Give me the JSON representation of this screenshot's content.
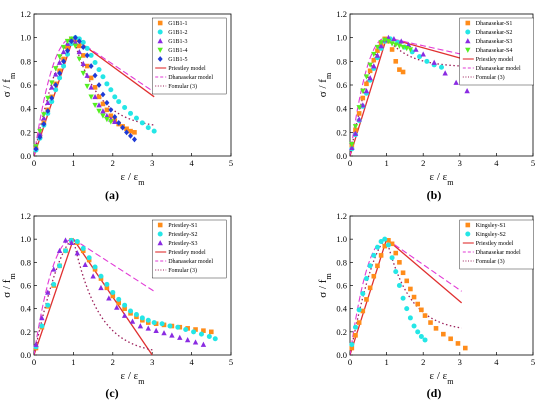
{
  "colors": {
    "S1": "#ff8c1a",
    "S2": "#24e6e6",
    "S3": "#8a2be2",
    "S4": "#55ee22",
    "S5": "#1f3bd6",
    "priestley": "#e03030",
    "dhanasekar": "#e23ad6",
    "formula": "#9b1f5a"
  },
  "chart_data": [
    {
      "panel": "(a)",
      "type": "scatter",
      "xlabel": "ε / ε_m",
      "ylabel": "σ / f_m",
      "xlim": [
        0,
        5
      ],
      "ylim": [
        0,
        1.2
      ],
      "xticks": [
        "0",
        "1",
        "2",
        "3",
        "4",
        "5"
      ],
      "yticks": [
        "0.0",
        "0.2",
        "0.4",
        "0.6",
        "0.8",
        "1.0",
        "1.2"
      ],
      "series": [
        {
          "name": "G1B1-1",
          "marker": "square",
          "color_key": "S1",
          "x": [
            0.05,
            0.15,
            0.25,
            0.35,
            0.45,
            0.55,
            0.65,
            0.75,
            0.85,
            0.95,
            1.05,
            1.15,
            1.25,
            1.35,
            1.45,
            1.55,
            1.65,
            1.75,
            1.85,
            1.95,
            2.05,
            2.15,
            2.25,
            2.35,
            2.45,
            2.55
          ],
          "y": [
            0.06,
            0.17,
            0.28,
            0.39,
            0.5,
            0.61,
            0.72,
            0.82,
            0.92,
            0.99,
            0.98,
            0.93,
            0.85,
            0.76,
            0.66,
            0.58,
            0.5,
            0.44,
            0.39,
            0.34,
            0.3,
            0.27,
            0.25,
            0.23,
            0.21,
            0.2
          ]
        },
        {
          "name": "G1B1-2",
          "marker": "circle",
          "color_key": "S2",
          "x": [
            0.05,
            0.15,
            0.25,
            0.35,
            0.45,
            0.55,
            0.65,
            0.75,
            0.85,
            0.95,
            1.05,
            1.15,
            1.25,
            1.35,
            1.45,
            1.55,
            1.65,
            1.75,
            1.85,
            1.95,
            2.05,
            2.15,
            2.3,
            2.45,
            2.6,
            2.75,
            2.9,
            3.05
          ],
          "y": [
            0.05,
            0.15,
            0.26,
            0.36,
            0.46,
            0.56,
            0.66,
            0.76,
            0.86,
            0.95,
            1.0,
            0.99,
            0.96,
            0.91,
            0.85,
            0.79,
            0.73,
            0.67,
            0.61,
            0.56,
            0.5,
            0.46,
            0.41,
            0.36,
            0.32,
            0.28,
            0.24,
            0.21
          ]
        },
        {
          "name": "G1B1-3",
          "marker": "triangle-up",
          "color_key": "S3",
          "x": [
            0.05,
            0.15,
            0.25,
            0.35,
            0.45,
            0.55,
            0.65,
            0.75,
            0.85,
            0.95,
            1.05,
            1.15,
            1.25,
            1.35,
            1.45,
            1.55,
            1.65,
            1.75,
            1.85,
            1.95,
            2.05
          ],
          "y": [
            0.07,
            0.19,
            0.32,
            0.45,
            0.58,
            0.69,
            0.79,
            0.88,
            0.95,
            0.99,
            0.96,
            0.88,
            0.78,
            0.68,
            0.58,
            0.5,
            0.43,
            0.38,
            0.34,
            0.31,
            0.29
          ]
        },
        {
          "name": "G1B1-4",
          "marker": "triangle-down",
          "color_key": "S4",
          "x": [
            0.05,
            0.15,
            0.25,
            0.35,
            0.45,
            0.55,
            0.65,
            0.75,
            0.85,
            0.95,
            1.05,
            1.15,
            1.25,
            1.35,
            1.45,
            1.55,
            1.65,
            1.75,
            1.85,
            1.95
          ],
          "y": [
            0.08,
            0.21,
            0.35,
            0.49,
            0.62,
            0.74,
            0.84,
            0.92,
            0.97,
            0.99,
            0.93,
            0.82,
            0.7,
            0.59,
            0.5,
            0.43,
            0.38,
            0.34,
            0.31,
            0.29
          ]
        },
        {
          "name": "G1B1-5",
          "marker": "diamond",
          "color_key": "S5",
          "x": [
            0.05,
            0.15,
            0.25,
            0.35,
            0.45,
            0.55,
            0.65,
            0.75,
            0.85,
            0.95,
            1.05,
            1.15,
            1.25,
            1.35,
            1.45,
            1.55,
            1.65,
            1.75,
            1.85,
            1.95,
            2.05,
            2.15,
            2.25,
            2.35,
            2.45,
            2.55
          ],
          "y": [
            0.06,
            0.16,
            0.27,
            0.38,
            0.49,
            0.6,
            0.7,
            0.8,
            0.89,
            0.97,
            1.0,
            0.97,
            0.92,
            0.85,
            0.76,
            0.68,
            0.6,
            0.52,
            0.45,
            0.39,
            0.33,
            0.28,
            0.24,
            0.2,
            0.17,
            0.14
          ]
        }
      ],
      "curves": [
        "priestley",
        "dhanasekar",
        "formula"
      ]
    },
    {
      "panel": "(b)",
      "type": "scatter",
      "xlabel": "ε / ε_m",
      "ylabel": "σ / f_m",
      "xlim": [
        0,
        5
      ],
      "ylim": [
        0,
        1.2
      ],
      "xticks": [
        "0",
        "1",
        "2",
        "3",
        "4",
        "5"
      ],
      "yticks": [
        "0.0",
        "0.2",
        "0.4",
        "0.6",
        "0.8",
        "1.0",
        "1.2"
      ],
      "series": [
        {
          "name": "Dhanasekar-S1",
          "marker": "square",
          "color_key": "S1",
          "x": [
            0.05,
            0.15,
            0.25,
            0.35,
            0.45,
            0.55,
            0.65,
            0.75,
            0.85,
            0.95,
            1.05,
            1.15,
            1.25,
            1.35,
            1.45
          ],
          "y": [
            0.08,
            0.22,
            0.36,
            0.49,
            0.61,
            0.72,
            0.81,
            0.89,
            0.95,
            0.99,
            0.97,
            0.9,
            0.8,
            0.73,
            0.71
          ]
        },
        {
          "name": "Dhanasekar-S2",
          "marker": "circle",
          "color_key": "S2",
          "x": [
            0.05,
            0.15,
            0.25,
            0.35,
            0.45,
            0.55,
            0.65,
            0.75,
            0.85,
            0.95,
            1.1,
            1.3,
            1.5,
            1.7,
            1.9,
            2.1,
            2.3,
            2.5
          ],
          "y": [
            0.06,
            0.18,
            0.3,
            0.42,
            0.53,
            0.64,
            0.74,
            0.83,
            0.91,
            0.97,
            0.99,
            0.96,
            0.92,
            0.88,
            0.84,
            0.8,
            0.77,
            0.75
          ]
        },
        {
          "name": "Dhanasekar-S3",
          "marker": "triangle-up",
          "color_key": "S3",
          "x": [
            0.05,
            0.15,
            0.25,
            0.35,
            0.45,
            0.55,
            0.65,
            0.75,
            0.85,
            0.95,
            1.05,
            1.2,
            1.4,
            1.6,
            1.8,
            2.0,
            2.3,
            2.6,
            2.9,
            3.2
          ],
          "y": [
            0.07,
            0.19,
            0.31,
            0.43,
            0.55,
            0.66,
            0.76,
            0.85,
            0.93,
            0.98,
            1.0,
            0.99,
            0.97,
            0.94,
            0.9,
            0.86,
            0.79,
            0.7,
            0.62,
            0.55
          ]
        },
        {
          "name": "Dhanasekar-S4",
          "marker": "triangle-down",
          "color_key": "S4",
          "x": [
            0.05,
            0.15,
            0.25,
            0.35,
            0.45,
            0.55,
            0.65,
            0.75,
            0.85,
            0.95,
            1.05,
            1.15,
            1.25,
            1.35,
            1.45,
            1.55,
            1.65
          ],
          "y": [
            0.1,
            0.25,
            0.41,
            0.55,
            0.67,
            0.77,
            0.86,
            0.92,
            0.96,
            0.98,
            0.97,
            0.95,
            0.94,
            0.93,
            0.92,
            0.91,
            0.9
          ]
        }
      ],
      "curves": [
        "priestley",
        "dhanasekar",
        "formula"
      ]
    },
    {
      "panel": "(c)",
      "type": "scatter",
      "xlabel": "ε / ε_m",
      "ylabel": "σ / f_m",
      "xlim": [
        0,
        5
      ],
      "ylim": [
        0,
        1.2
      ],
      "xticks": [
        "0",
        "1",
        "2",
        "3",
        "4",
        "5"
      ],
      "yticks": [
        "0.0",
        "0.2",
        "0.4",
        "0.6",
        "0.8",
        "1.0",
        "1.2"
      ],
      "series": [
        {
          "name": "Priestley-S1",
          "marker": "square",
          "color_key": "S1",
          "x": [
            0.05,
            0.2,
            0.35,
            0.5,
            0.65,
            0.8,
            0.95,
            1.1,
            1.25,
            1.4,
            1.55,
            1.7,
            1.85,
            2.0,
            2.15,
            2.3,
            2.45,
            2.6,
            2.75,
            2.9,
            3.1,
            3.3,
            3.5,
            3.7,
            3.9,
            4.1,
            4.3,
            4.5
          ],
          "y": [
            0.06,
            0.24,
            0.42,
            0.6,
            0.77,
            0.9,
            0.99,
            0.97,
            0.9,
            0.82,
            0.74,
            0.66,
            0.58,
            0.51,
            0.45,
            0.4,
            0.36,
            0.33,
            0.3,
            0.28,
            0.27,
            0.26,
            0.25,
            0.24,
            0.23,
            0.22,
            0.21,
            0.2
          ]
        },
        {
          "name": "Priestley-S2",
          "marker": "circle",
          "color_key": "S2",
          "x": [
            0.05,
            0.2,
            0.35,
            0.5,
            0.65,
            0.8,
            0.95,
            1.1,
            1.25,
            1.4,
            1.55,
            1.7,
            1.85,
            2.0,
            2.15,
            2.3,
            2.45,
            2.6,
            2.75,
            2.9,
            3.05,
            3.25,
            3.45,
            3.65,
            3.85,
            4.05,
            4.25,
            4.45,
            4.6
          ],
          "y": [
            0.07,
            0.25,
            0.43,
            0.61,
            0.77,
            0.9,
            0.99,
            0.98,
            0.92,
            0.84,
            0.76,
            0.68,
            0.61,
            0.54,
            0.48,
            0.43,
            0.38,
            0.35,
            0.32,
            0.3,
            0.28,
            0.27,
            0.25,
            0.24,
            0.22,
            0.2,
            0.18,
            0.16,
            0.14
          ]
        },
        {
          "name": "Priestley-S3",
          "marker": "triangle-up",
          "color_key": "S3",
          "x": [
            0.05,
            0.2,
            0.35,
            0.5,
            0.65,
            0.8,
            0.95,
            1.1,
            1.3,
            1.5,
            1.7,
            1.9,
            2.1,
            2.3,
            2.5,
            2.7,
            2.9,
            3.1,
            3.3,
            3.5,
            3.7,
            3.9,
            4.1,
            4.3
          ],
          "y": [
            0.09,
            0.32,
            0.54,
            0.74,
            0.9,
            0.99,
            0.97,
            0.88,
            0.78,
            0.68,
            0.58,
            0.49,
            0.41,
            0.34,
            0.29,
            0.25,
            0.23,
            0.21,
            0.19,
            0.17,
            0.15,
            0.13,
            0.11,
            0.09
          ]
        }
      ],
      "curves": [
        "priestley",
        "dhanasekar",
        "formula"
      ]
    },
    {
      "panel": "(d)",
      "type": "scatter",
      "xlabel": "ε / ε_m",
      "ylabel": "σ / f_m",
      "xlim": [
        0,
        5
      ],
      "ylim": [
        0,
        1.2
      ],
      "xticks": [
        "0",
        "1",
        "2",
        "3",
        "4",
        "5"
      ],
      "yticks": [
        "0.0",
        "0.2",
        "0.4",
        "0.6",
        "0.8",
        "1.0",
        "1.2"
      ],
      "series": [
        {
          "name": "Kingsley-S1",
          "marker": "square",
          "color_key": "S1",
          "x": [
            0.05,
            0.15,
            0.25,
            0.35,
            0.45,
            0.55,
            0.65,
            0.75,
            0.85,
            0.95,
            1.05,
            1.15,
            1.25,
            1.35,
            1.45,
            1.55,
            1.65,
            1.75,
            1.85,
            1.95,
            2.05,
            2.2,
            2.35,
            2.55,
            2.75,
            2.95,
            3.15
          ],
          "y": [
            0.06,
            0.17,
            0.28,
            0.38,
            0.48,
            0.58,
            0.68,
            0.77,
            0.86,
            0.94,
            0.99,
            0.96,
            0.88,
            0.8,
            0.71,
            0.64,
            0.57,
            0.5,
            0.44,
            0.39,
            0.34,
            0.28,
            0.23,
            0.18,
            0.14,
            0.1,
            0.06
          ]
        },
        {
          "name": "Kingsley-S2",
          "marker": "circle",
          "color_key": "S2",
          "x": [
            0.05,
            0.15,
            0.25,
            0.35,
            0.45,
            0.55,
            0.65,
            0.75,
            0.85,
            0.95,
            1.05,
            1.15,
            1.25,
            1.35,
            1.45,
            1.55,
            1.65,
            1.75,
            1.85,
            1.95,
            2.05
          ],
          "y": [
            0.09,
            0.24,
            0.39,
            0.53,
            0.66,
            0.77,
            0.86,
            0.93,
            0.98,
            1.0,
            0.95,
            0.84,
            0.72,
            0.6,
            0.49,
            0.4,
            0.32,
            0.25,
            0.2,
            0.16,
            0.13
          ]
        }
      ],
      "curves": [
        "priestley",
        "dhanasekar",
        "formula"
      ]
    }
  ],
  "curve_names": {
    "priestley": "Priestley model",
    "dhanasekar": "Dhanasekar model",
    "formula": "Fomular (3)"
  }
}
